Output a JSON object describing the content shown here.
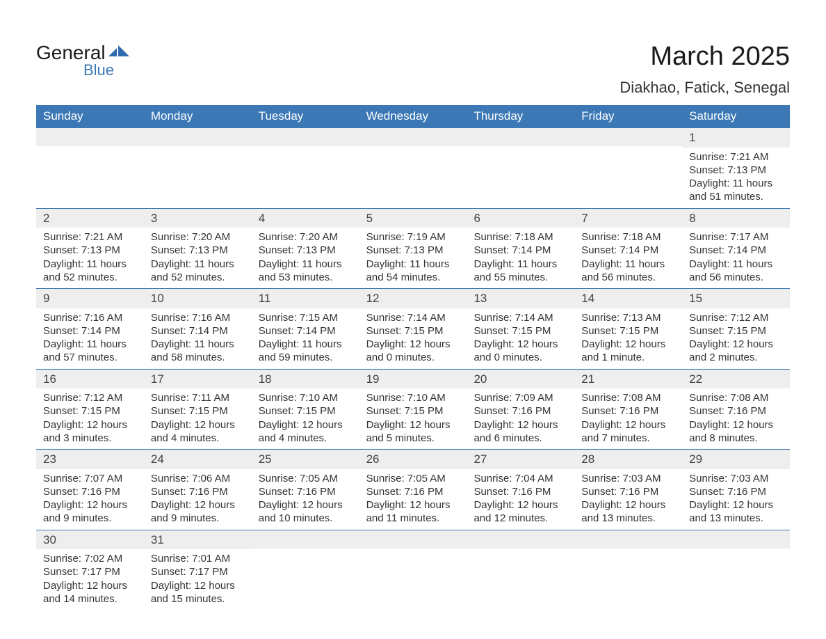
{
  "logo": {
    "general": "General",
    "blue": "Blue",
    "flag_color": "#2f6bad"
  },
  "title": {
    "month": "March 2025",
    "location": "Diakhao, Fatick, Senegal"
  },
  "styling": {
    "header_bg": "#3b78b5",
    "header_text": "#ffffff",
    "daynum_bg": "#eeeeee",
    "row_border": "#3b78b5",
    "body_text": "#333333",
    "page_bg": "#ffffff",
    "title_fontsize": 38,
    "location_fontsize": 22,
    "weekday_fontsize": 17,
    "cell_fontsize": 15
  },
  "weekdays": [
    "Sunday",
    "Monday",
    "Tuesday",
    "Wednesday",
    "Thursday",
    "Friday",
    "Saturday"
  ],
  "weeks": [
    [
      {
        "empty": true
      },
      {
        "empty": true
      },
      {
        "empty": true
      },
      {
        "empty": true
      },
      {
        "empty": true
      },
      {
        "empty": true
      },
      {
        "num": "1",
        "sunrise": "Sunrise: 7:21 AM",
        "sunset": "Sunset: 7:13 PM",
        "daylight1": "Daylight: 11 hours",
        "daylight2": "and 51 minutes."
      }
    ],
    [
      {
        "num": "2",
        "sunrise": "Sunrise: 7:21 AM",
        "sunset": "Sunset: 7:13 PM",
        "daylight1": "Daylight: 11 hours",
        "daylight2": "and 52 minutes."
      },
      {
        "num": "3",
        "sunrise": "Sunrise: 7:20 AM",
        "sunset": "Sunset: 7:13 PM",
        "daylight1": "Daylight: 11 hours",
        "daylight2": "and 52 minutes."
      },
      {
        "num": "4",
        "sunrise": "Sunrise: 7:20 AM",
        "sunset": "Sunset: 7:13 PM",
        "daylight1": "Daylight: 11 hours",
        "daylight2": "and 53 minutes."
      },
      {
        "num": "5",
        "sunrise": "Sunrise: 7:19 AM",
        "sunset": "Sunset: 7:13 PM",
        "daylight1": "Daylight: 11 hours",
        "daylight2": "and 54 minutes."
      },
      {
        "num": "6",
        "sunrise": "Sunrise: 7:18 AM",
        "sunset": "Sunset: 7:14 PM",
        "daylight1": "Daylight: 11 hours",
        "daylight2": "and 55 minutes."
      },
      {
        "num": "7",
        "sunrise": "Sunrise: 7:18 AM",
        "sunset": "Sunset: 7:14 PM",
        "daylight1": "Daylight: 11 hours",
        "daylight2": "and 56 minutes."
      },
      {
        "num": "8",
        "sunrise": "Sunrise: 7:17 AM",
        "sunset": "Sunset: 7:14 PM",
        "daylight1": "Daylight: 11 hours",
        "daylight2": "and 56 minutes."
      }
    ],
    [
      {
        "num": "9",
        "sunrise": "Sunrise: 7:16 AM",
        "sunset": "Sunset: 7:14 PM",
        "daylight1": "Daylight: 11 hours",
        "daylight2": "and 57 minutes."
      },
      {
        "num": "10",
        "sunrise": "Sunrise: 7:16 AM",
        "sunset": "Sunset: 7:14 PM",
        "daylight1": "Daylight: 11 hours",
        "daylight2": "and 58 minutes."
      },
      {
        "num": "11",
        "sunrise": "Sunrise: 7:15 AM",
        "sunset": "Sunset: 7:14 PM",
        "daylight1": "Daylight: 11 hours",
        "daylight2": "and 59 minutes."
      },
      {
        "num": "12",
        "sunrise": "Sunrise: 7:14 AM",
        "sunset": "Sunset: 7:15 PM",
        "daylight1": "Daylight: 12 hours",
        "daylight2": "and 0 minutes."
      },
      {
        "num": "13",
        "sunrise": "Sunrise: 7:14 AM",
        "sunset": "Sunset: 7:15 PM",
        "daylight1": "Daylight: 12 hours",
        "daylight2": "and 0 minutes."
      },
      {
        "num": "14",
        "sunrise": "Sunrise: 7:13 AM",
        "sunset": "Sunset: 7:15 PM",
        "daylight1": "Daylight: 12 hours",
        "daylight2": "and 1 minute."
      },
      {
        "num": "15",
        "sunrise": "Sunrise: 7:12 AM",
        "sunset": "Sunset: 7:15 PM",
        "daylight1": "Daylight: 12 hours",
        "daylight2": "and 2 minutes."
      }
    ],
    [
      {
        "num": "16",
        "sunrise": "Sunrise: 7:12 AM",
        "sunset": "Sunset: 7:15 PM",
        "daylight1": "Daylight: 12 hours",
        "daylight2": "and 3 minutes."
      },
      {
        "num": "17",
        "sunrise": "Sunrise: 7:11 AM",
        "sunset": "Sunset: 7:15 PM",
        "daylight1": "Daylight: 12 hours",
        "daylight2": "and 4 minutes."
      },
      {
        "num": "18",
        "sunrise": "Sunrise: 7:10 AM",
        "sunset": "Sunset: 7:15 PM",
        "daylight1": "Daylight: 12 hours",
        "daylight2": "and 4 minutes."
      },
      {
        "num": "19",
        "sunrise": "Sunrise: 7:10 AM",
        "sunset": "Sunset: 7:15 PM",
        "daylight1": "Daylight: 12 hours",
        "daylight2": "and 5 minutes."
      },
      {
        "num": "20",
        "sunrise": "Sunrise: 7:09 AM",
        "sunset": "Sunset: 7:16 PM",
        "daylight1": "Daylight: 12 hours",
        "daylight2": "and 6 minutes."
      },
      {
        "num": "21",
        "sunrise": "Sunrise: 7:08 AM",
        "sunset": "Sunset: 7:16 PM",
        "daylight1": "Daylight: 12 hours",
        "daylight2": "and 7 minutes."
      },
      {
        "num": "22",
        "sunrise": "Sunrise: 7:08 AM",
        "sunset": "Sunset: 7:16 PM",
        "daylight1": "Daylight: 12 hours",
        "daylight2": "and 8 minutes."
      }
    ],
    [
      {
        "num": "23",
        "sunrise": "Sunrise: 7:07 AM",
        "sunset": "Sunset: 7:16 PM",
        "daylight1": "Daylight: 12 hours",
        "daylight2": "and 9 minutes."
      },
      {
        "num": "24",
        "sunrise": "Sunrise: 7:06 AM",
        "sunset": "Sunset: 7:16 PM",
        "daylight1": "Daylight: 12 hours",
        "daylight2": "and 9 minutes."
      },
      {
        "num": "25",
        "sunrise": "Sunrise: 7:05 AM",
        "sunset": "Sunset: 7:16 PM",
        "daylight1": "Daylight: 12 hours",
        "daylight2": "and 10 minutes."
      },
      {
        "num": "26",
        "sunrise": "Sunrise: 7:05 AM",
        "sunset": "Sunset: 7:16 PM",
        "daylight1": "Daylight: 12 hours",
        "daylight2": "and 11 minutes."
      },
      {
        "num": "27",
        "sunrise": "Sunrise: 7:04 AM",
        "sunset": "Sunset: 7:16 PM",
        "daylight1": "Daylight: 12 hours",
        "daylight2": "and 12 minutes."
      },
      {
        "num": "28",
        "sunrise": "Sunrise: 7:03 AM",
        "sunset": "Sunset: 7:16 PM",
        "daylight1": "Daylight: 12 hours",
        "daylight2": "and 13 minutes."
      },
      {
        "num": "29",
        "sunrise": "Sunrise: 7:03 AM",
        "sunset": "Sunset: 7:16 PM",
        "daylight1": "Daylight: 12 hours",
        "daylight2": "and 13 minutes."
      }
    ],
    [
      {
        "num": "30",
        "sunrise": "Sunrise: 7:02 AM",
        "sunset": "Sunset: 7:17 PM",
        "daylight1": "Daylight: 12 hours",
        "daylight2": "and 14 minutes."
      },
      {
        "num": "31",
        "sunrise": "Sunrise: 7:01 AM",
        "sunset": "Sunset: 7:17 PM",
        "daylight1": "Daylight: 12 hours",
        "daylight2": "and 15 minutes."
      },
      {
        "empty": true
      },
      {
        "empty": true
      },
      {
        "empty": true
      },
      {
        "empty": true
      },
      {
        "empty": true
      }
    ]
  ]
}
